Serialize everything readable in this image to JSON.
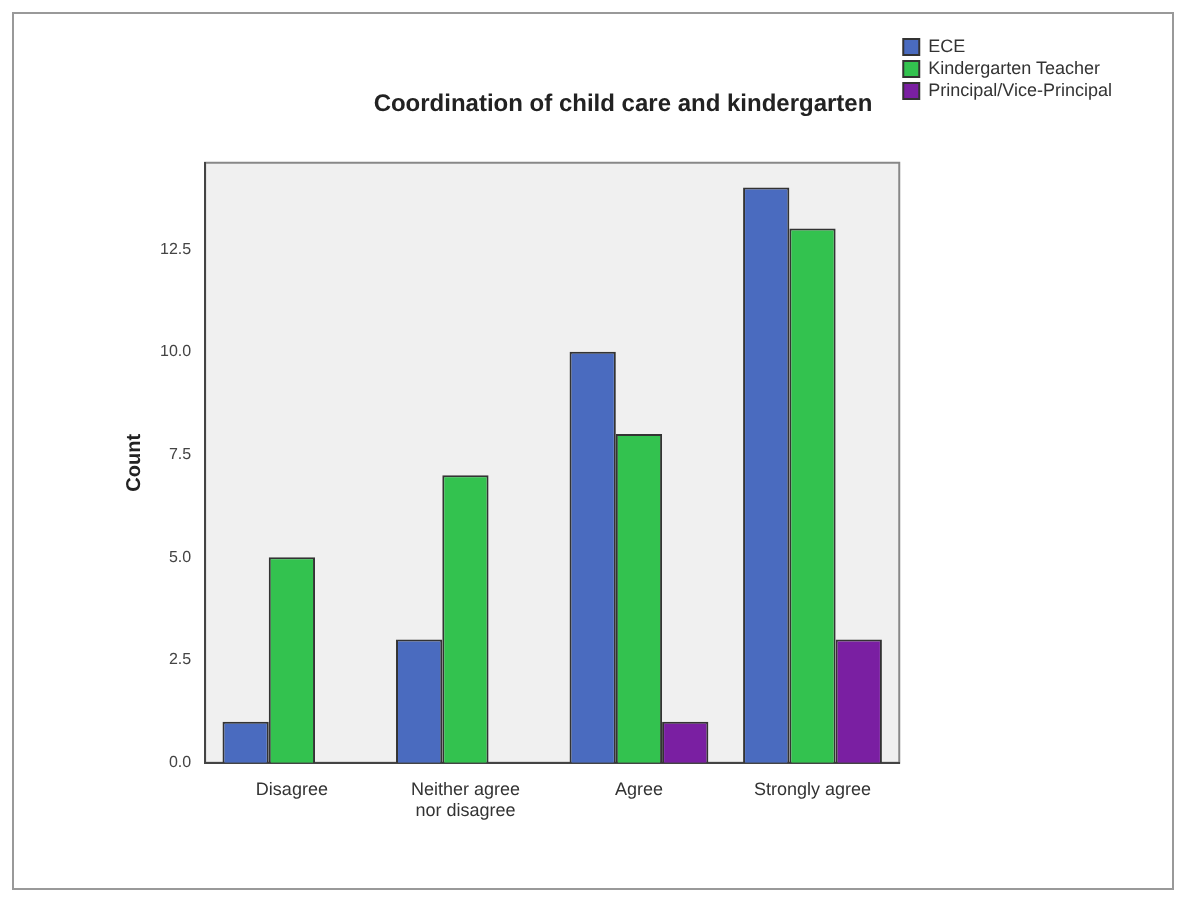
{
  "chart_data": {
    "type": "bar",
    "title": "Coordination of child care and kindergarten",
    "ylabel": "Count",
    "categories": [
      "Disagree",
      "Neither agree nor disagree",
      "Agree",
      "Strongly agree"
    ],
    "series": [
      {
        "name": "ECE",
        "color": "#4a6bbf",
        "values": [
          1,
          3,
          10,
          14
        ]
      },
      {
        "name": "Kindergarten Teacher",
        "color": "#33c24f",
        "values": [
          5,
          7,
          8,
          13
        ]
      },
      {
        "name": "Principal/Vice-Principal",
        "color": "#7a1fa2",
        "values": [
          null,
          null,
          1,
          3
        ]
      }
    ],
    "ylim": [
      0,
      14.6
    ],
    "yticks": [
      {
        "value": 0,
        "label": "0.0"
      },
      {
        "value": 2.5,
        "label": "2.5"
      },
      {
        "value": 5,
        "label": "5.0"
      },
      {
        "value": 7.5,
        "label": "7.5"
      },
      {
        "value": 10,
        "label": "10.0"
      },
      {
        "value": 12.5,
        "label": "12.5"
      }
    ],
    "grid": false,
    "legend": "top right"
  }
}
